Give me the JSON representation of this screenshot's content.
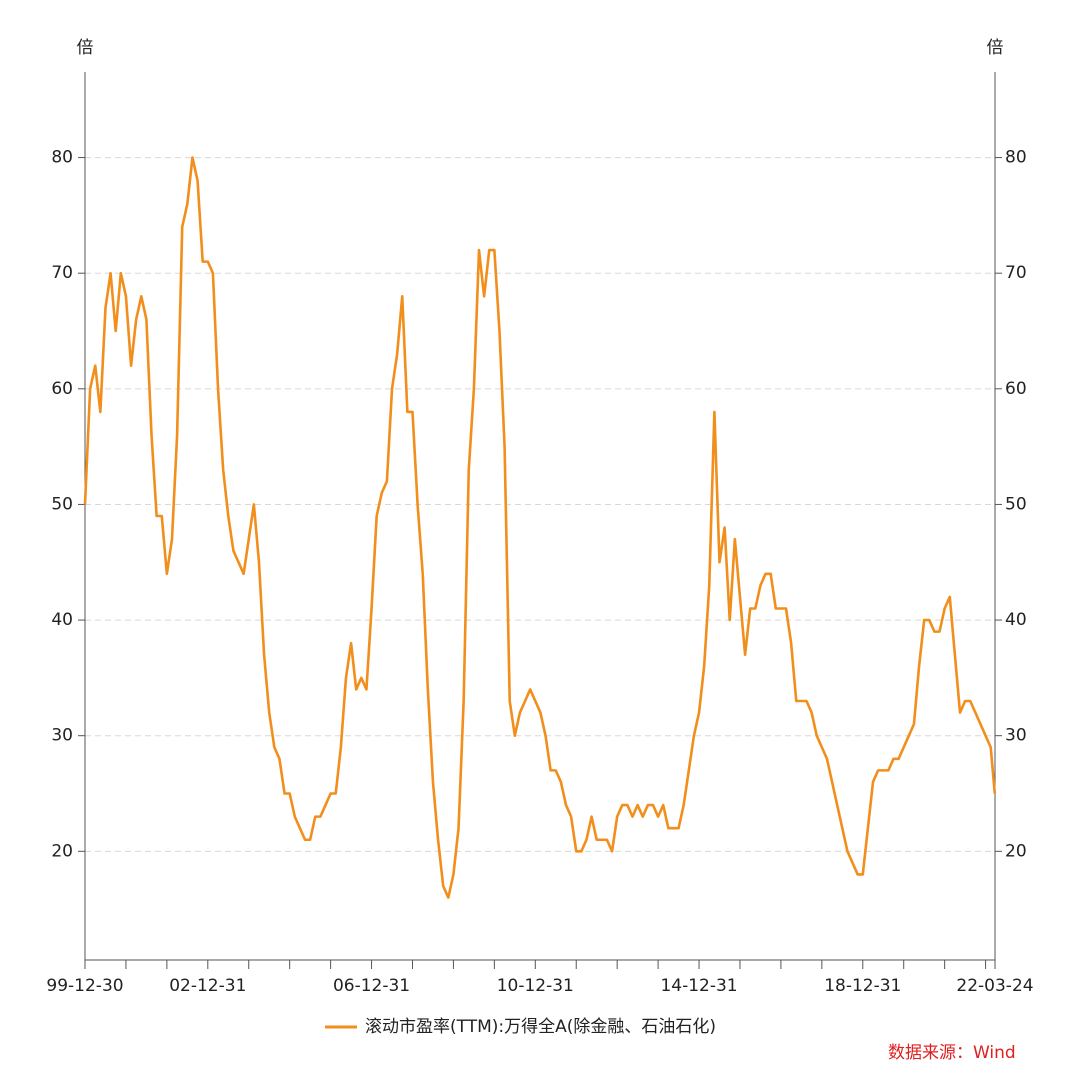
{
  "chart_data": {
    "type": "line",
    "y_unit_left": "倍",
    "y_unit_right": "倍",
    "legend_label": "滚动市盈率(TTM):万得全A(除金融、石油石化)",
    "source": "数据来源：Wind",
    "xlim": [
      2000,
      2022.23
    ],
    "xticks": [
      {
        "value": 2000,
        "label": "99-12-30"
      },
      {
        "value": 2003,
        "label": "02-12-31"
      },
      {
        "value": 2007,
        "label": "06-12-31"
      },
      {
        "value": 2011,
        "label": "10-12-31"
      },
      {
        "value": 2015,
        "label": "14-12-31"
      },
      {
        "value": 2019,
        "label": "18-12-31"
      },
      {
        "value": 2022.23,
        "label": "22-03-24"
      }
    ],
    "xminorticks": [
      2001,
      2002,
      2004,
      2005,
      2006,
      2008,
      2009,
      2010,
      2012,
      2013,
      2014,
      2016,
      2017,
      2018,
      2020,
      2021,
      2022
    ],
    "ylim": [
      10.6,
      87.4
    ],
    "yticks": [
      20,
      30,
      40,
      50,
      60,
      70,
      80
    ],
    "grid": true,
    "series": [
      {
        "name": "滚动市盈率(TTM):万得全A(除金融、石油石化)",
        "color": "#f28e1c",
        "x": [
          2000,
          2000.125,
          2000.25,
          2000.375,
          2000.5,
          2000.625,
          2000.75,
          2000.875,
          2001,
          2001.125,
          2001.25,
          2001.375,
          2001.5,
          2001.625,
          2001.75,
          2001.875,
          2002,
          2002.125,
          2002.25,
          2002.375,
          2002.5,
          2002.625,
          2002.75,
          2002.875,
          2003,
          2003.125,
          2003.25,
          2003.375,
          2003.5,
          2003.625,
          2003.75,
          2003.875,
          2004,
          2004.125,
          2004.25,
          2004.375,
          2004.5,
          2004.625,
          2004.75,
          2004.875,
          2005,
          2005.125,
          2005.25,
          2005.375,
          2005.5,
          2005.625,
          2005.75,
          2005.875,
          2006,
          2006.125,
          2006.25,
          2006.375,
          2006.5,
          2006.625,
          2006.75,
          2006.875,
          2007,
          2007.125,
          2007.25,
          2007.375,
          2007.5,
          2007.625,
          2007.75,
          2007.875,
          2008,
          2008.125,
          2008.25,
          2008.375,
          2008.5,
          2008.625,
          2008.75,
          2008.875,
          2009,
          2009.125,
          2009.25,
          2009.375,
          2009.5,
          2009.625,
          2009.75,
          2009.875,
          2010,
          2010.125,
          2010.25,
          2010.375,
          2010.5,
          2010.625,
          2010.75,
          2010.875,
          2011,
          2011.125,
          2011.25,
          2011.375,
          2011.5,
          2011.625,
          2011.75,
          2011.875,
          2012,
          2012.125,
          2012.25,
          2012.375,
          2012.5,
          2012.625,
          2012.75,
          2012.875,
          2013,
          2013.125,
          2013.25,
          2013.375,
          2013.5,
          2013.625,
          2013.75,
          2013.875,
          2014,
          2014.125,
          2014.25,
          2014.375,
          2014.5,
          2014.625,
          2014.75,
          2014.875,
          2015,
          2015.125,
          2015.25,
          2015.375,
          2015.5,
          2015.625,
          2015.75,
          2015.875,
          2016,
          2016.125,
          2016.25,
          2016.375,
          2016.5,
          2016.625,
          2016.75,
          2016.875,
          2017,
          2017.125,
          2017.25,
          2017.375,
          2017.5,
          2017.625,
          2017.75,
          2017.875,
          2018,
          2018.125,
          2018.25,
          2018.375,
          2018.5,
          2018.625,
          2018.75,
          2018.875,
          2019,
          2019.125,
          2019.25,
          2019.375,
          2019.5,
          2019.625,
          2019.75,
          2019.875,
          2020,
          2020.125,
          2020.25,
          2020.375,
          2020.5,
          2020.625,
          2020.75,
          2020.875,
          2021,
          2021.125,
          2021.25,
          2021.375,
          2021.5,
          2021.625,
          2021.75,
          2021.875,
          2022,
          2022.125,
          2022.225
        ],
        "values": [
          50,
          60,
          62,
          58,
          67,
          70,
          65,
          70,
          68,
          62,
          66,
          68,
          66,
          56,
          49,
          49,
          44,
          47,
          56,
          74,
          76,
          80,
          78,
          71,
          71,
          70,
          60,
          53,
          49,
          46,
          45,
          44,
          47,
          50,
          45,
          37,
          32,
          29,
          28,
          25,
          25,
          23,
          22,
          21,
          21,
          23,
          23,
          24,
          25,
          25,
          29,
          35,
          38,
          34,
          35,
          34,
          41,
          49,
          51,
          52,
          60,
          63,
          68,
          58,
          58,
          50,
          44,
          34,
          26,
          21,
          17,
          16,
          18,
          22,
          33,
          53,
          60,
          72,
          68,
          72,
          72,
          65,
          55,
          33,
          30,
          32,
          33,
          34,
          33,
          32,
          30,
          27,
          27,
          26,
          24,
          23,
          20,
          20,
          21,
          23,
          21,
          21,
          21,
          20,
          23,
          24,
          24,
          23,
          24,
          23,
          24,
          24,
          23,
          24,
          22,
          22,
          22,
          24,
          27,
          30,
          32,
          36,
          43,
          58,
          45,
          48,
          40,
          47,
          42,
          37,
          41,
          41,
          43,
          44,
          44,
          41,
          41,
          41,
          38,
          33,
          33,
          33,
          32,
          30,
          29,
          28,
          26,
          24,
          22,
          20,
          19,
          18,
          18,
          22,
          26,
          27,
          27,
          27,
          28,
          28,
          29,
          30,
          31,
          36,
          40,
          40,
          39,
          39,
          41,
          42,
          37,
          32,
          33,
          33,
          32,
          31,
          30,
          29,
          25
        ]
      }
    ]
  }
}
